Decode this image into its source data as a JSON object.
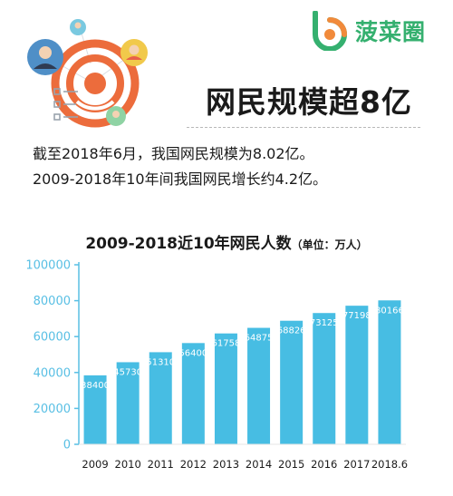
{
  "brand": {
    "name": "菠菜圈",
    "color": "#35b06f"
  },
  "header": {
    "title": "网民规模超8亿"
  },
  "summary": {
    "line1": "截至2018年6月，我国网民规模为8.02亿。",
    "line2": "2009-2018年10年间我国网民增长约4.2亿。"
  },
  "icons": [
    "target-icon",
    "user-avatar-icon",
    "checklist-icon"
  ],
  "colors": {
    "bar": "#47bde3",
    "axis": "#58bfe4",
    "label": "#47bde3",
    "accent": "#ec6c3c"
  },
  "chart_data": {
    "type": "bar",
    "title": "2009-2018近10年网民人数",
    "unit_note": "（单位：万人）",
    "categories": [
      "2009",
      "2010",
      "2011",
      "2012",
      "2013",
      "2014",
      "2015",
      "2016",
      "2017",
      "2018.6"
    ],
    "values": [
      38400,
      45730,
      51310,
      56400,
      61758,
      64875,
      68826,
      73125,
      77198,
      80166
    ],
    "yticks": [
      "0",
      "20000",
      "40000",
      "60000",
      "80000",
      "100000"
    ],
    "ylim": [
      0,
      100000
    ],
    "grid": false,
    "data_labels": true
  }
}
